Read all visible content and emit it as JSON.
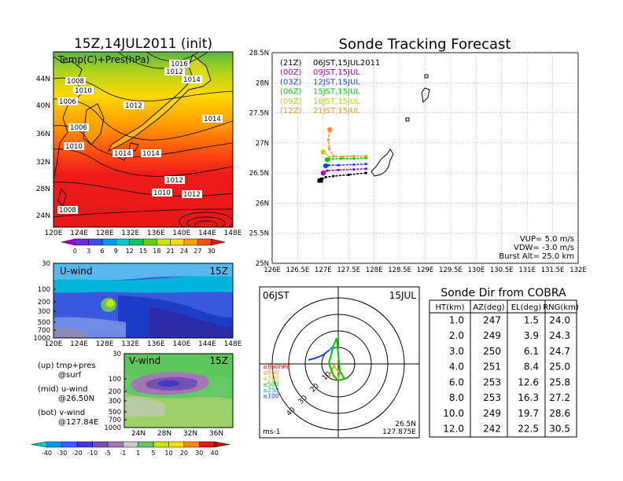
{
  "title_init": "15Z,14JUL2011 (init)",
  "map_panel": {
    "label": "Temp(C)+Pres(hPa)",
    "lat_ticks": [
      "24N",
      "28N",
      "32N",
      "36N",
      "40N",
      "44N"
    ],
    "lon_ticks": [
      "120E",
      "124E",
      "128E",
      "132E",
      "136E",
      "140E",
      "144E",
      "148E"
    ],
    "isobars": [
      "1008",
      "1010",
      "1006",
      "1006",
      "1010",
      "1012",
      "1014",
      "1012",
      "1014",
      "1016",
      "1012",
      "1014",
      "1014",
      "1012",
      "1010",
      "1008"
    ],
    "colorbar_values": [
      "0",
      "3",
      "6",
      "9",
      "12",
      "15",
      "18",
      "21",
      "24",
      "27",
      "30"
    ],
    "colorbar_colors": [
      "#a000c8",
      "#6e28dc",
      "#3c50f0",
      "#0096ff",
      "#00c8c8",
      "#00c864",
      "#64d200",
      "#c8e600",
      "#ffdc00",
      "#ffa000",
      "#ff5000",
      "#e61414"
    ]
  },
  "uwind_panel": {
    "label": "U-wind",
    "time": "15Z",
    "y_ticks": [
      "30",
      "100",
      "200",
      "300",
      "500",
      "700",
      "1000"
    ],
    "x_ticks": [
      "120E",
      "124E",
      "128E",
      "132E",
      "136E",
      "140E",
      "144E",
      "148E"
    ]
  },
  "vwind_panel": {
    "label": "V-wind",
    "time": "15Z",
    "y_ticks": [
      "30",
      "100",
      "200",
      "300",
      "500",
      "700",
      "1000"
    ],
    "x_ticks": [
      "24N",
      "28N",
      "32N",
      "36N"
    ]
  },
  "notes": [
    {
      "left": "(up) tmp+pres",
      "right": "@surf"
    },
    {
      "left": "(mid) u-wind",
      "right": "@26.50N"
    },
    {
      "left": "(bot) v-wind",
      "right": "@127.84E"
    }
  ],
  "wind_colorbar": {
    "values": [
      "-40",
      "-30",
      "-20",
      "-10",
      "-5",
      "-1",
      "1",
      "5",
      "10",
      "20",
      "30",
      "40"
    ],
    "colors": [
      "#00c8c8",
      "#0096ff",
      "#3264ff",
      "#3c3cc8",
      "#7850b4",
      "#a078b4",
      "#c8c8c8",
      "#64c864",
      "#c8e600",
      "#ffdc00",
      "#ff8c00",
      "#e61414",
      "#c80000"
    ]
  },
  "tracking": {
    "title": "Sonde Tracking Forecast",
    "legend": [
      {
        "code": "(21Z)",
        "text": "06JST,15JUL2011",
        "color": "#000000"
      },
      {
        "code": "(00Z)",
        "text": "09JST,15JUL",
        "color": "#a000c8"
      },
      {
        "code": "(03Z)",
        "text": "12JST,15JUL",
        "color": "#1e3cff"
      },
      {
        "code": "(06Z)",
        "text": "15JST,15JUL",
        "color": "#00c800"
      },
      {
        "code": "(09Z)",
        "text": "18JST,15JUL",
        "color": "#c8c800"
      },
      {
        "code": "(12Z)",
        "text": "21JST,15JUL",
        "color": "#ff8c28"
      }
    ],
    "lat_ticks": [
      "25N",
      "25.5N",
      "26N",
      "26.5N",
      "27N",
      "27.5N",
      "28N",
      "28.5N"
    ],
    "lon_ticks": [
      "126E",
      "126.5E",
      "127E",
      "127.5E",
      "128E",
      "128.5E",
      "129E",
      "129.5E",
      "130E",
      "130.5E",
      "131E",
      "131.5E",
      "132E"
    ],
    "params": [
      "VUP= 5.0 m/s",
      "VDW= -3.0 m/s",
      "Burst Alt= 25.0 km"
    ]
  },
  "chart_data": {
    "type": "line",
    "title": "Sonde Tracking Forecast",
    "xlim": [
      126,
      132
    ],
    "ylim": [
      25,
      28.5
    ],
    "series": [
      {
        "name": "(21Z) 06JST,15JUL2011",
        "color": "#000000",
        "x": [
          127.84,
          127.5,
          127.2,
          127.05,
          126.95
        ],
        "y": [
          26.5,
          26.47,
          26.45,
          26.43,
          26.38
        ]
      },
      {
        "name": "(00Z) 09JST,15JUL",
        "color": "#a000c8",
        "x": [
          127.84,
          127.6,
          127.3,
          127.08,
          127.0
        ],
        "y": [
          26.57,
          26.56,
          26.55,
          26.54,
          26.5
        ]
      },
      {
        "name": "(03Z) 12JST,15JUL",
        "color": "#1e3cff",
        "x": [
          127.84,
          127.6,
          127.3,
          127.1,
          127.05
        ],
        "y": [
          26.65,
          26.64,
          26.63,
          26.63,
          26.62
        ]
      },
      {
        "name": "(06Z) 15JST,15JUL",
        "color": "#00c800",
        "x": [
          127.84,
          127.6,
          127.35,
          127.12,
          127.08
        ],
        "y": [
          26.75,
          26.74,
          26.74,
          26.73,
          26.72
        ]
      },
      {
        "name": "(09Z) 18JST,15JUL",
        "color": "#c8c800",
        "x": [
          127.84,
          127.6,
          127.35,
          127.12,
          127.0
        ],
        "y": [
          26.78,
          26.78,
          26.77,
          26.77,
          26.85
        ]
      },
      {
        "name": "(12Z) 21JST,15JUL",
        "color": "#ff8c28",
        "x": [
          127.84,
          127.6,
          127.4,
          127.2,
          127.12,
          127.1,
          127.13
        ],
        "y": [
          26.78,
          26.78,
          26.77,
          26.78,
          26.9,
          27.05,
          27.22
        ]
      }
    ]
  },
  "polar": {
    "left_label": "06JST",
    "right_label": "15JUL",
    "ring_labels": [
      "10",
      "20",
      "30",
      "40"
    ],
    "level_labels": [
      {
        "text": "≥850hPa",
        "color": "#ff0000"
      },
      {
        "text": "≤850",
        "color": "#ff8c28"
      },
      {
        "text": "≤700",
        "color": "#c8c800"
      },
      {
        "text": "≤500",
        "color": "#00c800"
      },
      {
        "text": "≤250",
        "color": "#00b4c8"
      },
      {
        "text": "≤100",
        "color": "#1e3cff"
      }
    ],
    "unit": "ms-1",
    "pos_lat": "26.5N",
    "pos_lon": "127.875E"
  },
  "table": {
    "title": "Sonde Dir from COBRA",
    "headers": [
      "HT(km)",
      "AZ(deg)",
      "EL(deg)",
      "RNG(km)"
    ],
    "rows": [
      [
        "1.0",
        "247",
        "1.5",
        "24.0"
      ],
      [
        "2.0",
        "249",
        "3.9",
        "24.3"
      ],
      [
        "3.0",
        "250",
        "6.1",
        "24.7"
      ],
      [
        "4.0",
        "251",
        "8.4",
        "25.0"
      ],
      [
        "6.0",
        "253",
        "12.6",
        "25.8"
      ],
      [
        "8.0",
        "253",
        "16.3",
        "27.2"
      ],
      [
        "10.0",
        "249",
        "19.7",
        "28.6"
      ],
      [
        "12.0",
        "242",
        "22.5",
        "30.5"
      ]
    ]
  }
}
